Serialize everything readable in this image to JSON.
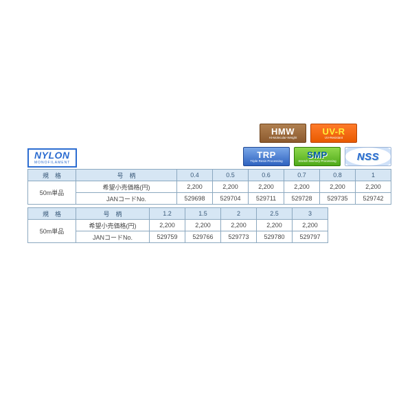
{
  "badges": {
    "hmw": {
      "big": "HMW",
      "sub": "Hi-Molecular-Weight"
    },
    "uvr": {
      "big": "UV-R",
      "sub": "UV-Resistant"
    },
    "trp": {
      "big": "TRP",
      "sub": "Triple Resin Processing"
    },
    "smp": {
      "big": "SMP",
      "sub": "Stretch Memory Processing"
    },
    "nss": {
      "big": "NSS"
    }
  },
  "label": {
    "main": "NYLON",
    "sub": "MONOFILAMENT"
  },
  "table1": {
    "h_kikaku": "規　格",
    "h_gogara": "号　柄",
    "unit": "50m単品",
    "row_price": "希望小売価格(円)",
    "row_jan": "JANコードNo.",
    "sizes": [
      "0.4",
      "0.5",
      "0.6",
      "0.7",
      "0.8",
      "1"
    ],
    "prices": [
      "2,200",
      "2,200",
      "2,200",
      "2,200",
      "2,200",
      "2,200"
    ],
    "jans": [
      "529698",
      "529704",
      "529711",
      "529728",
      "529735",
      "529742"
    ]
  },
  "table2": {
    "h_kikaku": "規　格",
    "h_gogara": "号　柄",
    "unit": "50m単品",
    "row_price": "希望小売価格(円)",
    "row_jan": "JANコードNo.",
    "sizes": [
      "1.2",
      "1.5",
      "2",
      "2.5",
      "3"
    ],
    "prices": [
      "2,200",
      "2,200",
      "2,200",
      "2,200",
      "2,200"
    ],
    "jans": [
      "529759",
      "529766",
      "529773",
      "529780",
      "529797"
    ]
  },
  "colors": {
    "border": "#8aa7bf",
    "header_bg": "#d6e6f4",
    "header_text": "#3a5a7a",
    "brand_blue": "#2a6bd0"
  }
}
